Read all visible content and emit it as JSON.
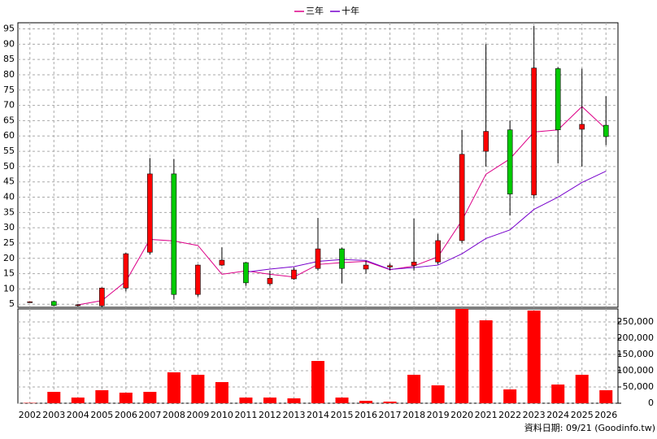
{
  "chart_data": {
    "type": "candlestick",
    "categories": [
      "2002",
      "2003",
      "2004",
      "2005",
      "2006",
      "2007",
      "2008",
      "2009",
      "2010",
      "2011",
      "2012",
      "2013",
      "2014",
      "2015",
      "2016",
      "2017",
      "2018",
      "2019",
      "2020",
      "2021",
      "2022",
      "2023",
      "2024",
      "2025",
      "2026"
    ],
    "candles": {
      "open": [
        5.6,
        5.9,
        4.6,
        4.5,
        10.3,
        22,
        47.6,
        8.2,
        17.8,
        18.6,
        11.7,
        13.3,
        16.7,
        23.1,
        16.5,
        17.2,
        17.7,
        18.8,
        25.8,
        55,
        62,
        40.7,
        82,
        62.2,
        63.5
      ],
      "high": [
        5.9,
        6.2,
        5.0,
        10.5,
        21.8,
        52.8,
        52.5,
        18,
        23.6,
        18.8,
        16,
        17,
        33.2,
        23.5,
        19.2,
        18.3,
        33,
        28,
        62,
        90,
        65,
        96,
        82.5,
        82,
        73
      ],
      "low": [
        5.5,
        4.4,
        4.2,
        4.0,
        9.2,
        21.2,
        6.5,
        7.5,
        17.5,
        11,
        11,
        13,
        16,
        11.8,
        15,
        16,
        16,
        18,
        25,
        50,
        34,
        39.6,
        51,
        50,
        57
      ],
      "close": [
        5.8,
        4.6,
        4.8,
        10.3,
        21.5,
        47.6,
        8.2,
        17.8,
        19.4,
        12,
        13.5,
        16.2,
        23.1,
        16.7,
        17.8,
        17.6,
        18.8,
        25.8,
        54,
        61.5,
        41,
        82.2,
        62,
        63.8,
        59.8
      ],
      "up_color": "#ff0000",
      "down_color": "#00cc00"
    },
    "series": [
      {
        "name": "三年",
        "color": "#dd0088",
        "values": [
          null,
          null,
          4.8,
          6.2,
          12.5,
          26.2,
          25.7,
          24.2,
          14.8,
          15.9,
          14.8,
          13.9,
          18,
          18.6,
          19,
          16.3,
          17.5,
          20.5,
          32.4,
          47.5,
          52.5,
          61.3,
          62,
          69.6,
          62.3
        ]
      },
      {
        "name": "十年",
        "color": "#7700cc",
        "values": [
          null,
          null,
          null,
          null,
          null,
          null,
          null,
          null,
          null,
          15.5,
          16.5,
          17.3,
          19,
          19.6,
          19.3,
          16.4,
          17,
          17.8,
          21.5,
          26.5,
          29.3,
          36,
          40,
          44.8,
          48.5
        ]
      }
    ],
    "ylim": [
      4,
      97
    ],
    "yticks": [
      5,
      10,
      15,
      20,
      25,
      30,
      35,
      40,
      45,
      50,
      55,
      60,
      65,
      70,
      75,
      80,
      85,
      90,
      95
    ],
    "volume": {
      "color": "#ff0000",
      "values": [
        1000,
        35000,
        17500,
        40000,
        32500,
        35000,
        95000,
        87500,
        65000,
        17500,
        17500,
        15000,
        130000,
        17500,
        7500,
        5000,
        87500,
        55000,
        290000,
        255000,
        42500,
        285000,
        57500,
        87500,
        40000
      ]
    },
    "y2lim": [
      0,
      290000
    ],
    "y2ticks": [
      0,
      {
        "value": 50000,
        "label": "50,000"
      },
      {
        "value": 100000,
        "label": "100,000"
      },
      {
        "value": 150000,
        "label": "150,000"
      },
      {
        "value": 200000,
        "label": "200,000"
      },
      {
        "value": 250000,
        "label": "250,000"
      }
    ],
    "grid": true,
    "footer": "資料日期: 09/21  (Goodinfo.tw)"
  }
}
